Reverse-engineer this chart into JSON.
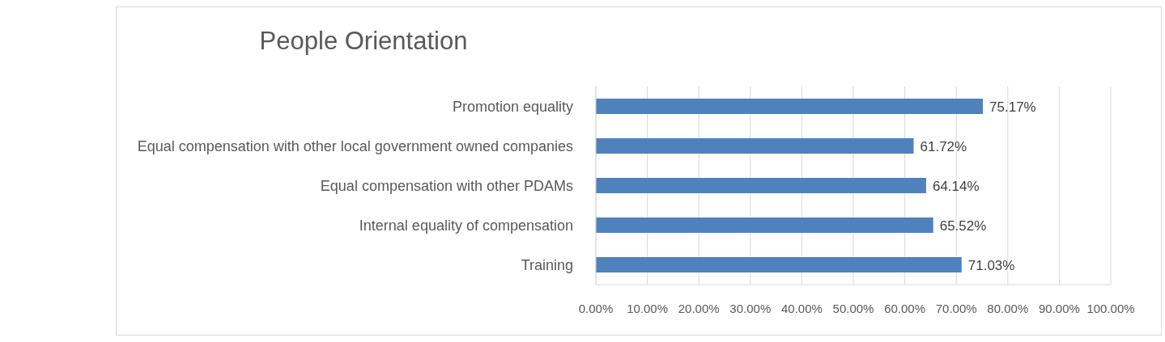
{
  "chart_data": {
    "type": "bar",
    "orientation": "horizontal",
    "title": "People Orientation",
    "categories": [
      "Promotion equality",
      "Equal compensation with other local government owned companies",
      "Equal compensation with other PDAMs",
      "Internal equality of compensation",
      "Training"
    ],
    "values": [
      75.17,
      61.72,
      64.14,
      65.52,
      71.03
    ],
    "value_labels": [
      "75.17%",
      "61.72%",
      "64.14%",
      "65.52%",
      "71.03%"
    ],
    "color": "#4f81bd",
    "xlim": [
      0,
      100
    ],
    "xticks": [
      {
        "value": 0,
        "label": "0.00%"
      },
      {
        "value": 10,
        "label": "10.00%"
      },
      {
        "value": 20,
        "label": "20.00%"
      },
      {
        "value": 30,
        "label": "30.00%"
      },
      {
        "value": 40,
        "label": "40.00%"
      },
      {
        "value": 50,
        "label": "50.00%"
      },
      {
        "value": 60,
        "label": "60.00%"
      },
      {
        "value": 70,
        "label": "70.00%"
      },
      {
        "value": 80,
        "label": "80.00%"
      },
      {
        "value": 90,
        "label": "90.00%"
      },
      {
        "value": 100,
        "label": "100.00%"
      }
    ],
    "grid": "x"
  }
}
